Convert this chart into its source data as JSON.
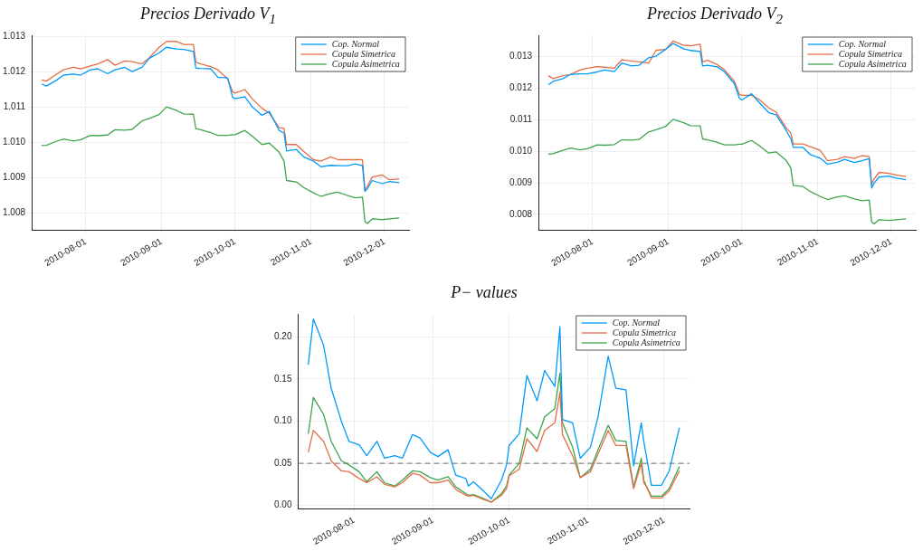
{
  "chart_data": [
    {
      "type": "line",
      "title": "Precios Derivado V$_{1}$",
      "x": [
        "2010-07-14",
        "2010-07-16",
        "2010-07-20",
        "2010-07-23",
        "2010-07-27",
        "2010-07-30",
        "2010-08-03",
        "2010-08-06",
        "2010-08-10",
        "2010-08-13",
        "2010-08-17",
        "2010-08-20",
        "2010-08-24",
        "2010-08-27",
        "2010-08-31",
        "2010-09-03",
        "2010-09-07",
        "2010-09-10",
        "2010-09-14",
        "2010-09-15",
        "2010-09-17",
        "2010-09-21",
        "2010-09-24",
        "2010-09-28",
        "2010-09-30",
        "2010-10-01",
        "2010-10-05",
        "2010-10-08",
        "2010-10-12",
        "2010-10-15",
        "2010-10-19",
        "2010-10-21",
        "2010-10-22",
        "2010-10-26",
        "2010-10-29",
        "2010-11-02",
        "2010-11-05",
        "2010-11-09",
        "2010-11-12",
        "2010-11-16",
        "2010-11-19",
        "2010-11-22",
        "2010-11-23",
        "2010-11-24",
        "2010-11-26",
        "2010-11-30",
        "2010-12-03",
        "2010-12-07"
      ],
      "series": [
        {
          "name": "Cop. Normal",
          "color": "#009afa",
          "values": [
            1.01166,
            1.0116,
            1.01176,
            1.01191,
            1.01194,
            1.01191,
            1.01206,
            1.01209,
            1.01195,
            1.01206,
            1.01213,
            1.01201,
            1.01213,
            1.01239,
            1.01254,
            1.0127,
            1.01265,
            1.01264,
            1.01258,
            1.01211,
            1.0121,
            1.01209,
            1.01185,
            1.01183,
            1.01128,
            1.01124,
            1.0113,
            1.01101,
            1.01077,
            1.01088,
            1.01034,
            1.01026,
            1.00976,
            1.0098,
            1.00959,
            1.00947,
            1.00931,
            1.00935,
            1.00934,
            1.00934,
            1.00939,
            1.00934,
            1.00861,
            1.00869,
            1.00892,
            1.00883,
            1.00889,
            1.00886
          ]
        },
        {
          "name": "Copula Simetrica",
          "color": "#e36f47",
          "values": [
            1.01177,
            1.01174,
            1.01193,
            1.01206,
            1.01213,
            1.01209,
            1.01217,
            1.01223,
            1.01235,
            1.01219,
            1.01231,
            1.01229,
            1.01223,
            1.0124,
            1.0127,
            1.01286,
            1.01287,
            1.01278,
            1.01278,
            1.01228,
            1.01223,
            1.01215,
            1.01206,
            1.0118,
            1.01144,
            1.0114,
            1.0115,
            1.01124,
            1.01097,
            1.01083,
            1.01042,
            1.0104,
            1.00994,
            1.00994,
            1.00975,
            1.00951,
            1.00947,
            1.00959,
            1.00951,
            1.00951,
            1.00951,
            1.00951,
            1.00865,
            1.00876,
            1.00902,
            1.00908,
            1.00894,
            1.00896
          ]
        },
        {
          "name": "Copula Asimetrica",
          "color": "#3ea44e",
          "values": [
            1.00991,
            1.00992,
            1.01003,
            1.0101,
            1.01004,
            1.01008,
            1.0102,
            1.01019,
            1.01021,
            1.01036,
            1.01035,
            1.01037,
            1.01061,
            1.01068,
            1.01079,
            1.01101,
            1.01091,
            1.01081,
            1.0108,
            1.01039,
            1.01036,
            1.01028,
            1.0102,
            1.0102,
            1.01022,
            1.01022,
            1.01034,
            1.01018,
            1.00994,
            1.00998,
            1.00972,
            1.00947,
            1.00892,
            1.00888,
            1.00872,
            1.00857,
            1.00847,
            1.00855,
            1.00859,
            1.00849,
            1.00843,
            1.00845,
            1.00776,
            1.0077,
            1.00783,
            1.00781,
            1.00783,
            1.00786
          ]
        }
      ],
      "xlim": [
        "2010-07-10",
        "2010-12-11"
      ],
      "xticks": [
        "2010-08-01",
        "2010-09-01",
        "2010-10-01",
        "2010-11-01",
        "2010-12-01"
      ],
      "ylim": [
        1.00752,
        1.01304
      ],
      "yticks": [
        {
          "value": 1.008,
          "label": "1.008"
        },
        {
          "value": 1.009,
          "label": "1.009"
        },
        {
          "value": 1.01,
          "label": "1.010"
        },
        {
          "value": 1.011,
          "label": "1.011"
        },
        {
          "value": 1.012,
          "label": "1.012"
        },
        {
          "value": 1.013,
          "label": "1.013"
        }
      ],
      "grid": true,
      "legend": "top right",
      "marker": "none"
    },
    {
      "type": "line",
      "title": "Precios Derivado V$_{2}$",
      "x": [
        "2010-07-14",
        "2010-07-16",
        "2010-07-20",
        "2010-07-23",
        "2010-07-27",
        "2010-07-30",
        "2010-08-03",
        "2010-08-06",
        "2010-08-10",
        "2010-08-13",
        "2010-08-17",
        "2010-08-20",
        "2010-08-24",
        "2010-08-27",
        "2010-08-31",
        "2010-09-03",
        "2010-09-07",
        "2010-09-10",
        "2010-09-14",
        "2010-09-15",
        "2010-09-17",
        "2010-09-21",
        "2010-09-24",
        "2010-09-28",
        "2010-09-30",
        "2010-10-01",
        "2010-10-05",
        "2010-10-08",
        "2010-10-12",
        "2010-10-15",
        "2010-10-19",
        "2010-10-21",
        "2010-10-22",
        "2010-10-26",
        "2010-10-29",
        "2010-11-02",
        "2010-11-05",
        "2010-11-09",
        "2010-11-12",
        "2010-11-16",
        "2010-11-19",
        "2010-11-22",
        "2010-11-23",
        "2010-11-24",
        "2010-11-26",
        "2010-11-30",
        "2010-12-03",
        "2010-12-07"
      ],
      "series": [
        {
          "name": "Cop. Normal",
          "color": "#009afa",
          "values": [
            0.0121,
            0.01221,
            0.0123,
            0.01243,
            0.01245,
            0.01245,
            0.01251,
            0.01257,
            0.01252,
            0.01279,
            0.0127,
            0.01272,
            0.01296,
            0.01301,
            0.01323,
            0.01341,
            0.01325,
            0.01319,
            0.01316,
            0.0127,
            0.01272,
            0.01267,
            0.01251,
            0.01213,
            0.01168,
            0.01162,
            0.01182,
            0.01155,
            0.01122,
            0.01115,
            0.01067,
            0.0104,
            0.01012,
            0.01012,
            0.00989,
            0.00978,
            0.00959,
            0.00965,
            0.00974,
            0.00964,
            0.0097,
            0.00976,
            0.00883,
            0.00899,
            0.00918,
            0.00921,
            0.00915,
            0.0091
          ]
        },
        {
          "name": "Copula Simetrica",
          "color": "#e36f47",
          "values": [
            0.01239,
            0.0123,
            0.01239,
            0.01243,
            0.01257,
            0.01263,
            0.01268,
            0.01266,
            0.01263,
            0.01289,
            0.01286,
            0.01283,
            0.01279,
            0.01319,
            0.01323,
            0.01349,
            0.01336,
            0.01334,
            0.01339,
            0.01283,
            0.01288,
            0.01274,
            0.01257,
            0.01221,
            0.0118,
            0.01177,
            0.01177,
            0.01164,
            0.01137,
            0.01124,
            0.01075,
            0.01058,
            0.01023,
            0.01023,
            0.01014,
            0.01003,
            0.0097,
            0.00974,
            0.00983,
            0.00977,
            0.00986,
            0.00983,
            0.00895,
            0.00912,
            0.00933,
            0.0093,
            0.00925,
            0.0092
          ]
        },
        {
          "name": "Copula Asimetrica",
          "color": "#3ea44e",
          "values": [
            0.00991,
            0.00992,
            0.01003,
            0.0101,
            0.01004,
            0.01008,
            0.0102,
            0.01019,
            0.01021,
            0.01036,
            0.01035,
            0.01037,
            0.01061,
            0.01068,
            0.01079,
            0.01101,
            0.01091,
            0.01081,
            0.0108,
            0.01039,
            0.01036,
            0.01028,
            0.0102,
            0.0102,
            0.01022,
            0.01022,
            0.01034,
            0.01018,
            0.00994,
            0.00998,
            0.00972,
            0.00947,
            0.00892,
            0.00888,
            0.00872,
            0.00857,
            0.00847,
            0.00855,
            0.00859,
            0.00849,
            0.00843,
            0.00845,
            0.00776,
            0.0077,
            0.00783,
            0.00781,
            0.00783,
            0.00786
          ]
        }
      ],
      "xlim": [
        "2010-07-10",
        "2010-12-11"
      ],
      "xticks": [
        "2010-08-01",
        "2010-09-01",
        "2010-10-01",
        "2010-11-01",
        "2010-12-01"
      ],
      "ylim": [
        0.00751,
        0.01367
      ],
      "yticks": [
        {
          "value": 0.008,
          "label": "0.008"
        },
        {
          "value": 0.009,
          "label": "0.009"
        },
        {
          "value": 0.01,
          "label": "0.010"
        },
        {
          "value": 0.011,
          "label": "0.011"
        },
        {
          "value": 0.012,
          "label": "0.012"
        },
        {
          "value": 0.013,
          "label": "0.013"
        }
      ],
      "grid": true,
      "legend": "top right",
      "marker": "none"
    },
    {
      "type": "line",
      "title": "P− values",
      "x": [
        "2010-07-14",
        "2010-07-16",
        "2010-07-20",
        "2010-07-23",
        "2010-07-27",
        "2010-07-30",
        "2010-08-03",
        "2010-08-06",
        "2010-08-10",
        "2010-08-13",
        "2010-08-17",
        "2010-08-20",
        "2010-08-24",
        "2010-08-27",
        "2010-08-31",
        "2010-09-03",
        "2010-09-07",
        "2010-09-10",
        "2010-09-14",
        "2010-09-15",
        "2010-09-17",
        "2010-09-21",
        "2010-09-24",
        "2010-09-28",
        "2010-09-30",
        "2010-10-01",
        "2010-10-05",
        "2010-10-08",
        "2010-10-12",
        "2010-10-15",
        "2010-10-19",
        "2010-10-21",
        "2010-10-22",
        "2010-10-26",
        "2010-10-29",
        "2010-11-02",
        "2010-11-05",
        "2010-11-09",
        "2010-11-12",
        "2010-11-16",
        "2010-11-19",
        "2010-11-22",
        "2010-11-23",
        "2010-11-24",
        "2010-11-26",
        "2010-11-30",
        "2010-12-03",
        "2010-12-07"
      ],
      "series": [
        {
          "name": "Cop. Normal",
          "color": "#009afa",
          "values": [
            0.167,
            0.221,
            0.19,
            0.139,
            0.1,
            0.076,
            0.072,
            0.059,
            0.076,
            0.056,
            0.059,
            0.056,
            0.084,
            0.08,
            0.063,
            0.058,
            0.066,
            0.036,
            0.032,
            0.023,
            0.028,
            0.017,
            0.008,
            0.03,
            0.048,
            0.071,
            0.085,
            0.154,
            0.124,
            0.16,
            0.141,
            0.212,
            0.102,
            0.098,
            0.056,
            0.069,
            0.105,
            0.177,
            0.139,
            0.137,
            0.047,
            0.098,
            0.076,
            0.059,
            0.024,
            0.024,
            0.041,
            0.092
          ]
        },
        {
          "name": "Copula Simetrica",
          "color": "#e36f47",
          "values": [
            0.063,
            0.089,
            0.076,
            0.053,
            0.041,
            0.04,
            0.032,
            0.027,
            0.034,
            0.025,
            0.022,
            0.027,
            0.038,
            0.036,
            0.027,
            0.027,
            0.03,
            0.019,
            0.012,
            0.011,
            0.012,
            0.007,
            0.004,
            0.012,
            0.02,
            0.035,
            0.043,
            0.079,
            0.064,
            0.089,
            0.098,
            0.134,
            0.084,
            0.059,
            0.033,
            0.04,
            0.061,
            0.089,
            0.071,
            0.071,
            0.02,
            0.05,
            0.027,
            0.023,
            0.009,
            0.009,
            0.017,
            0.041
          ]
        },
        {
          "name": "Copula Asimetrica",
          "color": "#3ea44e",
          "values": [
            0.085,
            0.128,
            0.108,
            0.076,
            0.053,
            0.048,
            0.04,
            0.028,
            0.04,
            0.027,
            0.023,
            0.03,
            0.041,
            0.04,
            0.033,
            0.03,
            0.034,
            0.022,
            0.014,
            0.012,
            0.013,
            0.008,
            0.004,
            0.014,
            0.023,
            0.036,
            0.05,
            0.092,
            0.079,
            0.105,
            0.115,
            0.157,
            0.098,
            0.069,
            0.033,
            0.043,
            0.066,
            0.095,
            0.077,
            0.076,
            0.022,
            0.056,
            0.03,
            0.023,
            0.011,
            0.011,
            0.02,
            0.046
          ]
        }
      ],
      "xlim": [
        "2010-07-10",
        "2010-12-11"
      ],
      "xticks": [
        "2010-08-01",
        "2010-09-01",
        "2010-10-01",
        "2010-11-01",
        "2010-12-01"
      ],
      "ylim": [
        -0.0036,
        0.227
      ],
      "yticks": [
        {
          "value": 0,
          "label": "0.00"
        },
        {
          "value": 0.05,
          "label": "0.05"
        },
        {
          "value": 0.1,
          "label": "0.10"
        },
        {
          "value": 0.15,
          "label": "0.15"
        },
        {
          "value": 0.2,
          "label": "0.20"
        }
      ],
      "ref_lines": [
        {
          "axis": "y",
          "value": 0.05,
          "color": "#888888",
          "line_style": "dashed"
        }
      ],
      "grid": true,
      "legend": "top right",
      "marker": "none"
    }
  ]
}
